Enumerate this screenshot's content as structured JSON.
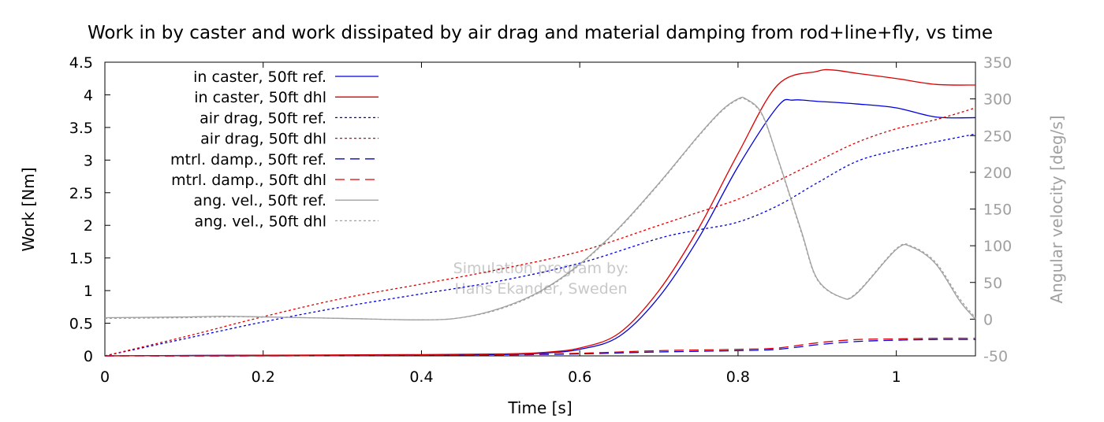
{
  "chart_data": {
    "type": "line",
    "title": "Work in by caster and work dissipated by air drag and material damping from rod+line+fly, vs time",
    "xlabel": "Time [s]",
    "ylabel": "Work [Nm]",
    "y2label": "Angular velocity [deg/s]",
    "xlim": [
      0,
      1.1
    ],
    "ylim": [
      0,
      4.5
    ],
    "y2lim": [
      -50,
      350
    ],
    "xticks": [
      "0",
      "0.2",
      "0.4",
      "0.6",
      "0.8",
      "1"
    ],
    "xtick_values": [
      0,
      0.2,
      0.4,
      0.6,
      0.8,
      1.0
    ],
    "yticks": [
      "0",
      "0.5",
      "1",
      "1.5",
      "2",
      "2.5",
      "3",
      "3.5",
      "4",
      "4.5"
    ],
    "ytick_values": [
      0,
      0.5,
      1,
      1.5,
      2,
      2.5,
      3,
      3.5,
      4,
      4.5
    ],
    "y2ticks": [
      "-50",
      "0",
      "50",
      "100",
      "150",
      "200",
      "250",
      "300",
      "350"
    ],
    "y2tick_values": [
      -50,
      0,
      50,
      100,
      150,
      200,
      250,
      300,
      350
    ],
    "grid": false,
    "legend_position": "top-left",
    "annotation": [
      "Simulation program by:",
      "Hans Ekander, Sweden"
    ],
    "series": [
      {
        "name": "in caster, 50ft ref.",
        "axis": "y",
        "color": "#0000dd",
        "dash": "solid",
        "x": [
          0,
          0.2,
          0.4,
          0.5,
          0.55,
          0.6,
          0.65,
          0.7,
          0.75,
          0.8,
          0.85,
          0.87,
          0.9,
          0.95,
          1.0,
          1.05,
          1.1
        ],
        "y": [
          0,
          0.01,
          0.01,
          0.02,
          0.04,
          0.1,
          0.3,
          0.9,
          1.8,
          2.9,
          3.82,
          3.92,
          3.9,
          3.86,
          3.8,
          3.66,
          3.65
        ]
      },
      {
        "name": "in caster, 50ft dhl",
        "axis": "y",
        "color": "#dd0000",
        "dash": "solid",
        "x": [
          0,
          0.2,
          0.4,
          0.5,
          0.55,
          0.6,
          0.65,
          0.7,
          0.75,
          0.8,
          0.85,
          0.9,
          0.92,
          0.95,
          1.0,
          1.05,
          1.1
        ],
        "y": [
          0,
          0.01,
          0.02,
          0.03,
          0.05,
          0.12,
          0.35,
          1.0,
          1.95,
          3.1,
          4.15,
          4.36,
          4.38,
          4.33,
          4.25,
          4.16,
          4.15
        ]
      },
      {
        "name": "air drag, 50ft ref.",
        "axis": "y",
        "color": "#0000dd",
        "dash": "3,3",
        "x": [
          0,
          0.1,
          0.2,
          0.3,
          0.4,
          0.5,
          0.6,
          0.7,
          0.75,
          0.8,
          0.85,
          0.9,
          0.95,
          1.0,
          1.05,
          1.1
        ],
        "y": [
          0,
          0.26,
          0.52,
          0.75,
          0.95,
          1.15,
          1.42,
          1.8,
          1.93,
          2.05,
          2.3,
          2.65,
          2.98,
          3.15,
          3.28,
          3.4
        ]
      },
      {
        "name": "air drag, 50ft dhl",
        "axis": "y",
        "color": "#dd0000",
        "dash": "3,3",
        "x": [
          0,
          0.1,
          0.2,
          0.3,
          0.4,
          0.5,
          0.6,
          0.7,
          0.75,
          0.8,
          0.85,
          0.9,
          0.95,
          1.0,
          1.05,
          1.1
        ],
        "y": [
          0,
          0.29,
          0.6,
          0.88,
          1.1,
          1.33,
          1.6,
          2.0,
          2.2,
          2.4,
          2.68,
          2.98,
          3.27,
          3.48,
          3.62,
          3.8
        ]
      },
      {
        "name": "mtrl. damp., 50ft ref.",
        "axis": "y",
        "color": "#0000dd",
        "dash": "12,7",
        "x": [
          0,
          0.2,
          0.4,
          0.5,
          0.6,
          0.7,
          0.8,
          0.85,
          0.9,
          0.95,
          1.0,
          1.05,
          1.1
        ],
        "y": [
          0,
          0.0,
          0.01,
          0.015,
          0.03,
          0.06,
          0.08,
          0.1,
          0.17,
          0.22,
          0.24,
          0.25,
          0.25
        ]
      },
      {
        "name": "mtrl. damp., 50ft dhl",
        "axis": "y",
        "color": "#dd0000",
        "dash": "12,7",
        "x": [
          0,
          0.2,
          0.4,
          0.5,
          0.6,
          0.7,
          0.8,
          0.85,
          0.9,
          0.95,
          1.0,
          1.05,
          1.1
        ],
        "y": [
          0,
          0.0,
          0.01,
          0.02,
          0.04,
          0.08,
          0.1,
          0.12,
          0.2,
          0.25,
          0.26,
          0.27,
          0.27
        ]
      },
      {
        "name": "ang. vel., 50ft ref.",
        "axis": "y2",
        "color": "#a0a0a0",
        "dash": "solid",
        "x": [
          0,
          0.1,
          0.15,
          0.2,
          0.3,
          0.4,
          0.45,
          0.5,
          0.55,
          0.6,
          0.65,
          0.7,
          0.75,
          0.78,
          0.8,
          0.81,
          0.83,
          0.85,
          0.88,
          0.9,
          0.93,
          0.95,
          1.0,
          1.02,
          1.05,
          1.08,
          1.1
        ],
        "y": [
          2,
          3,
          4,
          3,
          1,
          -1,
          2,
          15,
          38,
          75,
          125,
          185,
          250,
          285,
          300,
          300,
          280,
          220,
          120,
          55,
          30,
          35,
          95,
          98,
          75,
          25,
          0
        ]
      },
      {
        "name": "ang. vel., 50ft dhl",
        "axis": "y2",
        "color": "#a0a0a0",
        "dash": "3,3",
        "x": [
          0,
          0.1,
          0.15,
          0.2,
          0.3,
          0.4,
          0.45,
          0.5,
          0.55,
          0.6,
          0.65,
          0.7,
          0.75,
          0.78,
          0.8,
          0.81,
          0.83,
          0.85,
          0.88,
          0.9,
          0.93,
          0.95,
          1.0,
          1.02,
          1.05,
          1.08,
          1.1
        ],
        "y": [
          1,
          2,
          3,
          3,
          1,
          -1,
          2,
          14,
          37,
          74,
          124,
          184,
          249,
          284,
          299,
          299,
          279,
          219,
          118,
          54,
          30,
          36,
          96,
          99,
          77,
          28,
          2
        ]
      }
    ]
  }
}
